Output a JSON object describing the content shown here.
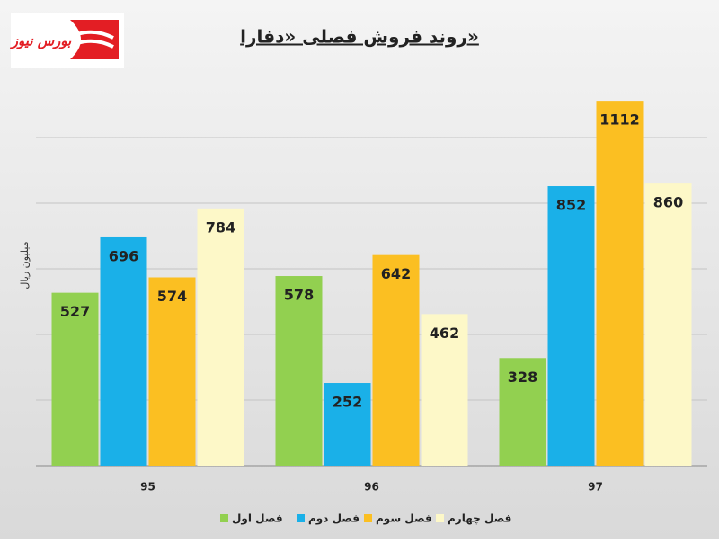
{
  "logo": "بورس نیوز",
  "chart_data": {
    "type": "bar",
    "title": "روند فروش فصلی «دفارا»",
    "y_label": "میلیون ریال",
    "categories": [
      "95",
      "96",
      "97"
    ],
    "series": [
      {
        "name": "فصل اول",
        "color": "#92d050",
        "values": [
          527,
          578,
          328
        ]
      },
      {
        "name": "فصل دوم",
        "color": "#1ab0e8",
        "values": [
          696,
          252,
          852
        ]
      },
      {
        "name": "فصل سوم",
        "color": "#fbbf22",
        "values": [
          574,
          642,
          1112
        ]
      },
      {
        "name": "فصل چهارم",
        "color": "#fdf8c8",
        "values": [
          784,
          462,
          860
        ]
      }
    ],
    "ylim": [
      0,
      1200
    ],
    "yticks": [
      0,
      200,
      400,
      600,
      800,
      1000
    ],
    "grid": true
  }
}
